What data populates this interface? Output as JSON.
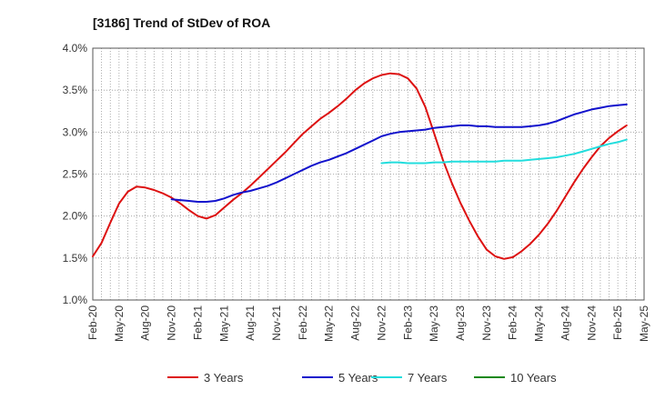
{
  "chart_data": {
    "type": "line",
    "title": "[3186]  Trend of StDev of ROA",
    "xlabel": "",
    "ylabel": "",
    "y_ticks": [
      "4.0%",
      "3.5%",
      "3.0%",
      "2.5%",
      "2.0%",
      "1.5%",
      "1.0%"
    ],
    "ylim": [
      1.0,
      4.0
    ],
    "x_ticks": [
      "Feb-20",
      "May-20",
      "Aug-20",
      "Nov-20",
      "Feb-21",
      "May-21",
      "Aug-21",
      "Nov-21",
      "Feb-22",
      "May-22",
      "Aug-22",
      "Nov-22",
      "Feb-23",
      "May-23",
      "Aug-23",
      "Nov-23",
      "Feb-24",
      "May-24",
      "Aug-24",
      "Nov-24",
      "Feb-25",
      "May-25"
    ],
    "grid": true,
    "legend_position": "bottom",
    "colors": {
      "3 Years": "#dd1111",
      "5 Years": "#1111cc",
      "7 Years": "#22dddd",
      "10 Years": "#118811"
    },
    "series": [
      {
        "name": "3 Years",
        "color": "#dd1111",
        "points": [
          [
            "Feb-20",
            1.52
          ],
          [
            "Mar-20",
            1.68
          ],
          [
            "Apr-20",
            1.92
          ],
          [
            "May-20",
            2.15
          ],
          [
            "Jun-20",
            2.29
          ],
          [
            "Jul-20",
            2.35
          ],
          [
            "Aug-20",
            2.34
          ],
          [
            "Sep-20",
            2.31
          ],
          [
            "Oct-20",
            2.27
          ],
          [
            "Nov-20",
            2.22
          ],
          [
            "Dec-20",
            2.15
          ],
          [
            "Jan-21",
            2.07
          ],
          [
            "Feb-21",
            2.0
          ],
          [
            "Mar-21",
            1.97
          ],
          [
            "Apr-21",
            2.01
          ],
          [
            "May-21",
            2.1
          ],
          [
            "Jun-21",
            2.19
          ],
          [
            "Jul-21",
            2.27
          ],
          [
            "Aug-21",
            2.36
          ],
          [
            "Sep-21",
            2.46
          ],
          [
            "Oct-21",
            2.56
          ],
          [
            "Nov-21",
            2.66
          ],
          [
            "Dec-21",
            2.76
          ],
          [
            "Jan-22",
            2.87
          ],
          [
            "Feb-22",
            2.98
          ],
          [
            "Mar-22",
            3.07
          ],
          [
            "Apr-22",
            3.16
          ],
          [
            "May-22",
            3.23
          ],
          [
            "Jun-22",
            3.31
          ],
          [
            "Jul-22",
            3.4
          ],
          [
            "Aug-22",
            3.5
          ],
          [
            "Sep-22",
            3.58
          ],
          [
            "Oct-22",
            3.64
          ],
          [
            "Nov-22",
            3.68
          ],
          [
            "Dec-22",
            3.7
          ],
          [
            "Jan-23",
            3.69
          ],
          [
            "Feb-23",
            3.64
          ],
          [
            "Mar-23",
            3.52
          ],
          [
            "Apr-23",
            3.3
          ],
          [
            "May-23",
            2.99
          ],
          [
            "Jun-23",
            2.67
          ],
          [
            "Jul-23",
            2.4
          ],
          [
            "Aug-23",
            2.16
          ],
          [
            "Sep-23",
            1.95
          ],
          [
            "Oct-23",
            1.76
          ],
          [
            "Nov-23",
            1.6
          ],
          [
            "Dec-23",
            1.52
          ],
          [
            "Jan-24",
            1.49
          ],
          [
            "Feb-24",
            1.51
          ],
          [
            "Mar-24",
            1.58
          ],
          [
            "Apr-24",
            1.67
          ],
          [
            "May-24",
            1.78
          ],
          [
            "Jun-24",
            1.91
          ],
          [
            "Jul-24",
            2.06
          ],
          [
            "Aug-24",
            2.23
          ],
          [
            "Sep-24",
            2.4
          ],
          [
            "Oct-24",
            2.56
          ],
          [
            "Nov-24",
            2.7
          ],
          [
            "Dec-24",
            2.83
          ],
          [
            "Jan-25",
            2.93
          ],
          [
            "Feb-25",
            3.01
          ],
          [
            "Mar-25",
            3.08
          ]
        ]
      },
      {
        "name": "5 Years",
        "color": "#1111cc",
        "points": [
          [
            "Nov-20",
            2.2
          ],
          [
            "Dec-20",
            2.19
          ],
          [
            "Jan-21",
            2.18
          ],
          [
            "Feb-21",
            2.17
          ],
          [
            "Mar-21",
            2.17
          ],
          [
            "Apr-21",
            2.18
          ],
          [
            "May-21",
            2.21
          ],
          [
            "Jun-21",
            2.25
          ],
          [
            "Jul-21",
            2.28
          ],
          [
            "Aug-21",
            2.3
          ],
          [
            "Sep-21",
            2.33
          ],
          [
            "Oct-21",
            2.36
          ],
          [
            "Nov-21",
            2.4
          ],
          [
            "Dec-21",
            2.45
          ],
          [
            "Jan-22",
            2.5
          ],
          [
            "Feb-22",
            2.55
          ],
          [
            "Mar-22",
            2.6
          ],
          [
            "Apr-22",
            2.64
          ],
          [
            "May-22",
            2.67
          ],
          [
            "Jun-22",
            2.71
          ],
          [
            "Jul-22",
            2.75
          ],
          [
            "Aug-22",
            2.8
          ],
          [
            "Sep-22",
            2.85
          ],
          [
            "Oct-22",
            2.9
          ],
          [
            "Nov-22",
            2.95
          ],
          [
            "Dec-22",
            2.98
          ],
          [
            "Jan-23",
            3.0
          ],
          [
            "Feb-23",
            3.01
          ],
          [
            "Mar-23",
            3.02
          ],
          [
            "Apr-23",
            3.03
          ],
          [
            "May-23",
            3.05
          ],
          [
            "Jun-23",
            3.06
          ],
          [
            "Jul-23",
            3.07
          ],
          [
            "Aug-23",
            3.08
          ],
          [
            "Sep-23",
            3.08
          ],
          [
            "Oct-23",
            3.07
          ],
          [
            "Nov-23",
            3.07
          ],
          [
            "Dec-23",
            3.06
          ],
          [
            "Jan-24",
            3.06
          ],
          [
            "Feb-24",
            3.06
          ],
          [
            "Mar-24",
            3.06
          ],
          [
            "Apr-24",
            3.07
          ],
          [
            "May-24",
            3.08
          ],
          [
            "Jun-24",
            3.1
          ],
          [
            "Jul-24",
            3.13
          ],
          [
            "Aug-24",
            3.17
          ],
          [
            "Sep-24",
            3.21
          ],
          [
            "Oct-24",
            3.24
          ],
          [
            "Nov-24",
            3.27
          ],
          [
            "Dec-24",
            3.29
          ],
          [
            "Jan-25",
            3.31
          ],
          [
            "Feb-25",
            3.32
          ],
          [
            "Mar-25",
            3.33
          ]
        ]
      },
      {
        "name": "7 Years",
        "color": "#22dddd",
        "points": [
          [
            "Nov-22",
            2.63
          ],
          [
            "Dec-22",
            2.64
          ],
          [
            "Jan-23",
            2.64
          ],
          [
            "Feb-23",
            2.63
          ],
          [
            "Mar-23",
            2.63
          ],
          [
            "Apr-23",
            2.63
          ],
          [
            "May-23",
            2.64
          ],
          [
            "Jun-23",
            2.64
          ],
          [
            "Jul-23",
            2.65
          ],
          [
            "Aug-23",
            2.65
          ],
          [
            "Sep-23",
            2.65
          ],
          [
            "Oct-23",
            2.65
          ],
          [
            "Nov-23",
            2.65
          ],
          [
            "Dec-23",
            2.65
          ],
          [
            "Jan-24",
            2.66
          ],
          [
            "Feb-24",
            2.66
          ],
          [
            "Mar-24",
            2.66
          ],
          [
            "Apr-24",
            2.67
          ],
          [
            "May-24",
            2.68
          ],
          [
            "Jun-24",
            2.69
          ],
          [
            "Jul-24",
            2.7
          ],
          [
            "Aug-24",
            2.72
          ],
          [
            "Sep-24",
            2.74
          ],
          [
            "Oct-24",
            2.77
          ],
          [
            "Nov-24",
            2.8
          ],
          [
            "Dec-24",
            2.83
          ],
          [
            "Jan-25",
            2.86
          ],
          [
            "Feb-25",
            2.88
          ],
          [
            "Mar-25",
            2.91
          ]
        ]
      },
      {
        "name": "10 Years",
        "color": "#118811",
        "points": []
      }
    ]
  }
}
